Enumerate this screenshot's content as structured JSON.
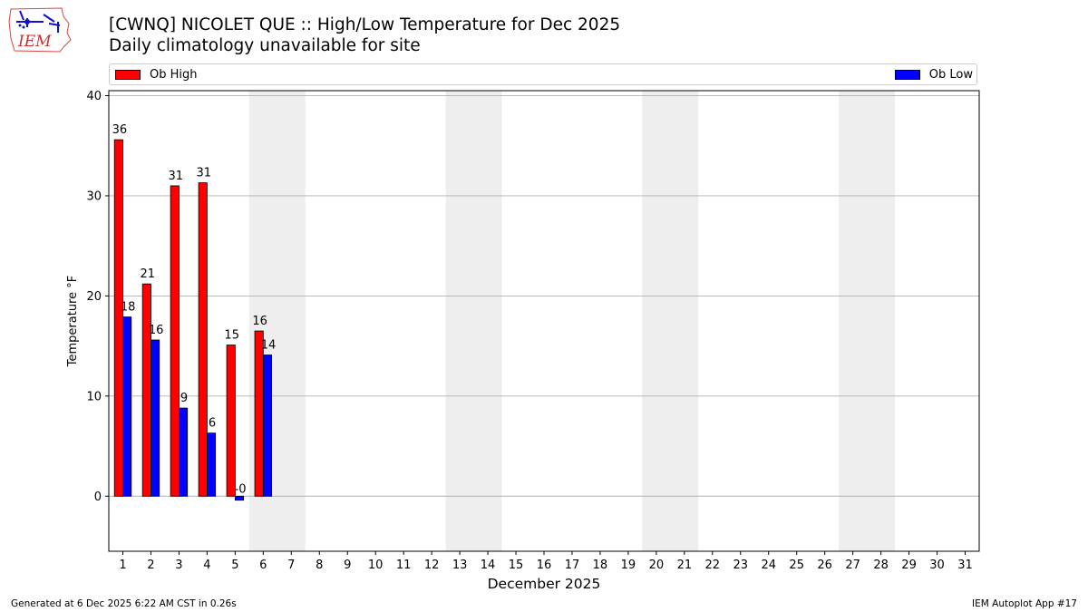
{
  "header": {
    "title": "[CWNQ] NICOLET  QUE :: High/Low Temperature for Dec 2025",
    "subtitle": "Daily climatology unavailable for site",
    "logo_text": "IEM"
  },
  "footer": {
    "generated": "Generated at 6 Dec 2025 6:22 AM CST in 0.26s",
    "app": "IEM Autoplot App #17"
  },
  "chart_data": {
    "type": "bar",
    "categories": [
      "1",
      "2",
      "3",
      "4",
      "5",
      "6",
      "7",
      "8",
      "9",
      "10",
      "11",
      "12",
      "13",
      "14",
      "15",
      "16",
      "17",
      "18",
      "19",
      "20",
      "21",
      "22",
      "23",
      "24",
      "25",
      "26",
      "27",
      "28",
      "29",
      "30",
      "31"
    ],
    "series": [
      {
        "name": "Ob High",
        "color": "#ff0000",
        "values": [
          35.6,
          21.2,
          31.0,
          31.3,
          15.1,
          16.5,
          null,
          null,
          null,
          null,
          null,
          null,
          null,
          null,
          null,
          null,
          null,
          null,
          null,
          null,
          null,
          null,
          null,
          null,
          null,
          null,
          null,
          null,
          null,
          null,
          null
        ],
        "labels": [
          "36",
          "21",
          "31",
          "31",
          "15",
          "16"
        ]
      },
      {
        "name": "Ob Low",
        "color": "#0000ff",
        "values": [
          17.9,
          15.6,
          8.8,
          6.3,
          -0.4,
          14.1,
          null,
          null,
          null,
          null,
          null,
          null,
          null,
          null,
          null,
          null,
          null,
          null,
          null,
          null,
          null,
          null,
          null,
          null,
          null,
          null,
          null,
          null,
          null,
          null,
          null
        ],
        "labels": [
          "18",
          "16",
          "9",
          "6",
          "-0",
          "14"
        ]
      }
    ],
    "weekend_shading": [
      [
        6,
        7
      ],
      [
        13,
        14
      ],
      [
        20,
        21
      ],
      [
        27,
        28
      ]
    ],
    "shade_color": "#eeeeee",
    "xlabel": "December 2025",
    "ylabel": "Temperature °F",
    "ylim": [
      -5.5,
      40.5
    ],
    "yticks": [
      0,
      10,
      20,
      30,
      40
    ],
    "grid": "y",
    "legend": "top"
  }
}
